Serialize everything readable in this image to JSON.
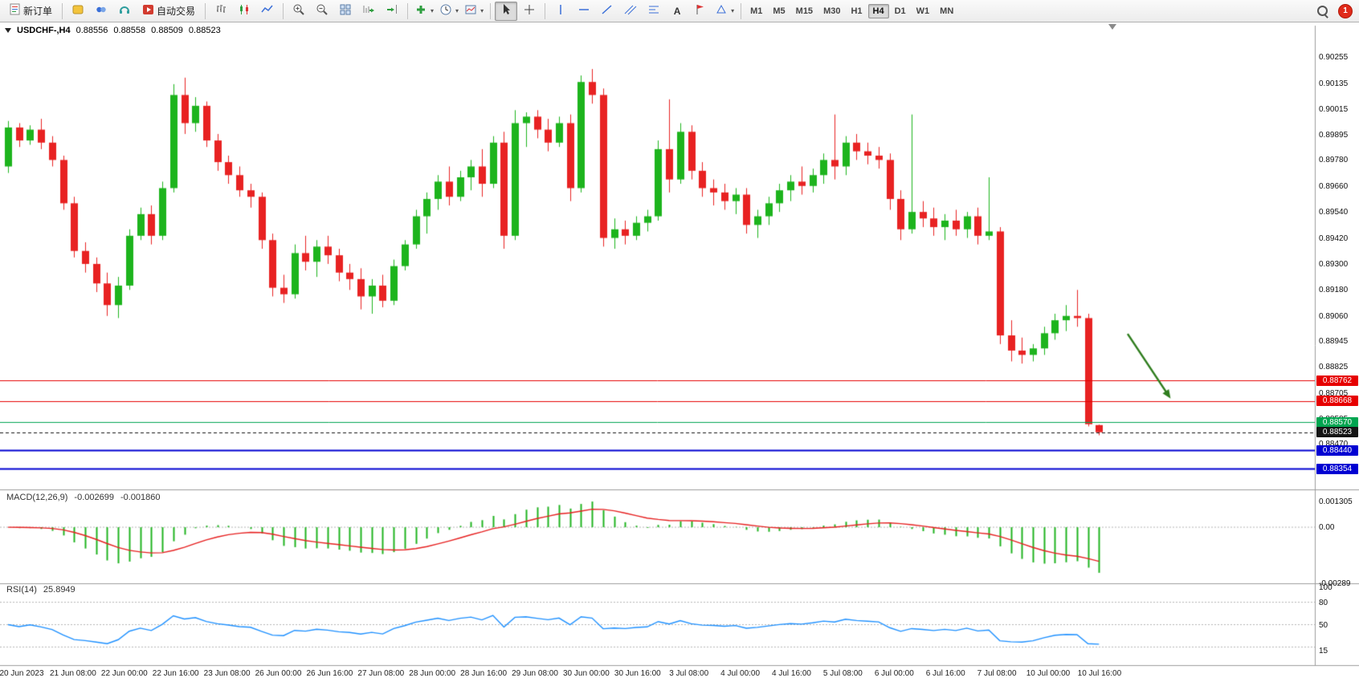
{
  "toolbar": {
    "new_order_label": "新订单",
    "autotrading_label": "自动交易",
    "timeframes": [
      "M1",
      "M5",
      "M15",
      "M30",
      "H1",
      "H4",
      "D1",
      "W1",
      "MN"
    ],
    "active_timeframe": "H4",
    "notification_count": "1"
  },
  "chart_header": {
    "symbol_period": "USDCHF-,H4",
    "open": "0.88556",
    "high": "0.88558",
    "low": "0.88509",
    "close": "0.88523"
  },
  "price_axis": {
    "ticks": [
      "0.90255",
      "0.90135",
      "0.90015",
      "0.89895",
      "0.89780",
      "0.89660",
      "0.89540",
      "0.89420",
      "0.89300",
      "0.89180",
      "0.89060",
      "0.88945",
      "0.88825",
      "0.88705",
      "0.88585",
      "0.88470",
      "0.88350"
    ]
  },
  "levels": [
    {
      "value": "0.88762",
      "price": 0.88762,
      "color": "#e60000",
      "style": "solid",
      "width": 1
    },
    {
      "value": "0.88668",
      "price": 0.88668,
      "color": "#e60000",
      "style": "solid",
      "width": 1
    },
    {
      "value": "0.88570",
      "price": 0.8857,
      "color": "#00a550",
      "style": "solid",
      "width": 1
    },
    {
      "value": "0.88523",
      "price": 0.88523,
      "color": "#151515",
      "style": "dashed",
      "width": 1,
      "current": true
    },
    {
      "value": "0.88440",
      "price": 0.8844,
      "color": "#0000d2",
      "style": "solid",
      "width": 2
    },
    {
      "value": "0.88354",
      "price": 0.88354,
      "color": "#0000d2",
      "style": "solid",
      "width": 2
    }
  ],
  "time_axis": {
    "labels": [
      "20 Jun 2023",
      "21 Jun 08:00",
      "22 Jun 00:00",
      "22 Jun 16:00",
      "23 Jun 08:00",
      "26 Jun 00:00",
      "26 Jun 16:00",
      "27 Jun 08:00",
      "28 Jun 00:00",
      "28 Jun 16:00",
      "29 Jun 08:00",
      "30 Jun 00:00",
      "30 Jun 16:00",
      "3 Jul 08:00",
      "4 Jul 00:00",
      "4 Jul 16:00",
      "5 Jul 08:00",
      "6 Jul 00:00",
      "6 Jul 16:00",
      "7 Jul 08:00",
      "10 Jul 00:00",
      "10 Jul 16:00"
    ]
  },
  "indicators": {
    "macd": {
      "label": "MACD(12,26,9)",
      "value_main": "-0.002699",
      "value_signal": "-0.001860",
      "histogram_color": "#22b422",
      "signal_color": "#e62020",
      "axis": [
        {
          "text": "0.001305",
          "value": 0.001305
        },
        {
          "text": "0.00",
          "value": 0
        },
        {
          "text": "-0.00289",
          "value": -0.00289
        }
      ]
    },
    "rsi": {
      "label": "RSI(14)",
      "value": "25.8949",
      "line_color": "#1E90FF",
      "levels": [
        80,
        50,
        20
      ],
      "axis": [
        {
          "text": "100",
          "value": 100
        },
        {
          "text": "80",
          "value": 80
        },
        {
          "text": "50",
          "value": 50
        },
        {
          "text": "15",
          "value": 15
        }
      ]
    }
  },
  "annotations": {
    "arrow": {
      "color": "#2f7d1e",
      "width": 2.5,
      "from": {
        "bar": 101.6,
        "price": 0.88977
      },
      "to": {
        "bar": 105.5,
        "price": 0.88678
      }
    }
  },
  "chart_data": {
    "type": "candlestick",
    "symbol": "USDCHF-",
    "period": "H4",
    "bull_color": "#1db41d",
    "bear_color": "#e82222",
    "y_range": {
      "max": 0.904,
      "min": 0.8827
    },
    "candles": [
      [
        0.8975,
        0.8996,
        0.8972,
        0.8993
      ],
      [
        0.8993,
        0.8995,
        0.8984,
        0.8987
      ],
      [
        0.8987,
        0.8994,
        0.8985,
        0.8992
      ],
      [
        0.8992,
        0.8997,
        0.8983,
        0.8986
      ],
      [
        0.8986,
        0.8989,
        0.8975,
        0.8978
      ],
      [
        0.8978,
        0.898,
        0.8955,
        0.8958
      ],
      [
        0.8958,
        0.8961,
        0.8933,
        0.8936
      ],
      [
        0.8936,
        0.894,
        0.8926,
        0.893
      ],
      [
        0.893,
        0.8933,
        0.8917,
        0.8921
      ],
      [
        0.8921,
        0.8926,
        0.8906,
        0.8911
      ],
      [
        0.8911,
        0.8924,
        0.8905,
        0.892
      ],
      [
        0.892,
        0.8946,
        0.8918,
        0.8943
      ],
      [
        0.8943,
        0.8956,
        0.8941,
        0.8953
      ],
      [
        0.8953,
        0.8957,
        0.8939,
        0.8943
      ],
      [
        0.8943,
        0.8968,
        0.8941,
        0.8965
      ],
      [
        0.8965,
        0.9013,
        0.8963,
        0.9008
      ],
      [
        0.9008,
        0.9016,
        0.899,
        0.8995
      ],
      [
        0.8995,
        0.9007,
        0.8991,
        0.9003
      ],
      [
        0.9003,
        0.9005,
        0.8984,
        0.8987
      ],
      [
        0.8987,
        0.899,
        0.8973,
        0.8977
      ],
      [
        0.8977,
        0.898,
        0.8967,
        0.8971
      ],
      [
        0.8971,
        0.8975,
        0.8961,
        0.8964
      ],
      [
        0.8964,
        0.8967,
        0.8956,
        0.8961
      ],
      [
        0.8961,
        0.8963,
        0.8937,
        0.8941
      ],
      [
        0.8941,
        0.8944,
        0.8915,
        0.8919
      ],
      [
        0.8919,
        0.8925,
        0.8912,
        0.8916
      ],
      [
        0.8916,
        0.8939,
        0.8914,
        0.8935
      ],
      [
        0.8935,
        0.8943,
        0.8927,
        0.8931
      ],
      [
        0.8931,
        0.8941,
        0.8924,
        0.8938
      ],
      [
        0.8938,
        0.8943,
        0.893,
        0.8934
      ],
      [
        0.8934,
        0.8937,
        0.8922,
        0.8926
      ],
      [
        0.8926,
        0.893,
        0.8918,
        0.8923
      ],
      [
        0.8923,
        0.8928,
        0.8909,
        0.8915
      ],
      [
        0.8915,
        0.8923,
        0.8907,
        0.892
      ],
      [
        0.892,
        0.8925,
        0.891,
        0.8913
      ],
      [
        0.8913,
        0.8932,
        0.8911,
        0.8929
      ],
      [
        0.8929,
        0.8941,
        0.8927,
        0.8939
      ],
      [
        0.8939,
        0.8955,
        0.8937,
        0.8952
      ],
      [
        0.8952,
        0.8963,
        0.8944,
        0.896
      ],
      [
        0.896,
        0.8971,
        0.8955,
        0.8968
      ],
      [
        0.8968,
        0.8975,
        0.8957,
        0.8961
      ],
      [
        0.8961,
        0.8973,
        0.8959,
        0.897
      ],
      [
        0.897,
        0.8978,
        0.8964,
        0.8975
      ],
      [
        0.8975,
        0.8983,
        0.8961,
        0.8967
      ],
      [
        0.8967,
        0.8989,
        0.8965,
        0.8986
      ],
      [
        0.8986,
        0.8991,
        0.8937,
        0.8943
      ],
      [
        0.8943,
        0.9001,
        0.8941,
        0.8995
      ],
      [
        0.8995,
        0.9,
        0.8984,
        0.8998
      ],
      [
        0.8998,
        0.9001,
        0.8988,
        0.8992
      ],
      [
        0.8992,
        0.8997,
        0.8982,
        0.8986
      ],
      [
        0.8986,
        0.8998,
        0.8984,
        0.8995
      ],
      [
        0.8995,
        0.8999,
        0.8959,
        0.8965
      ],
      [
        0.8965,
        0.9017,
        0.8963,
        0.9014
      ],
      [
        0.9014,
        0.902,
        0.9004,
        0.9008
      ],
      [
        0.9008,
        0.9011,
        0.8938,
        0.8942
      ],
      [
        0.8942,
        0.8951,
        0.8937,
        0.8946
      ],
      [
        0.8946,
        0.895,
        0.8939,
        0.8943
      ],
      [
        0.8943,
        0.8952,
        0.8941,
        0.8949
      ],
      [
        0.8949,
        0.8955,
        0.8945,
        0.8952
      ],
      [
        0.8952,
        0.8987,
        0.895,
        0.8983
      ],
      [
        0.8983,
        0.9006,
        0.8963,
        0.8969
      ],
      [
        0.8969,
        0.8995,
        0.8967,
        0.8991
      ],
      [
        0.8991,
        0.8994,
        0.8969,
        0.8973
      ],
      [
        0.8973,
        0.8977,
        0.8961,
        0.8965
      ],
      [
        0.8965,
        0.8969,
        0.8957,
        0.8963
      ],
      [
        0.8963,
        0.8967,
        0.8955,
        0.8959
      ],
      [
        0.8959,
        0.8965,
        0.8953,
        0.8962
      ],
      [
        0.8962,
        0.8965,
        0.8944,
        0.8948
      ],
      [
        0.8948,
        0.8955,
        0.8942,
        0.8952
      ],
      [
        0.8952,
        0.8961,
        0.8948,
        0.8958
      ],
      [
        0.8958,
        0.8967,
        0.8954,
        0.8964
      ],
      [
        0.8964,
        0.8971,
        0.8959,
        0.8968
      ],
      [
        0.8968,
        0.8975,
        0.8962,
        0.8966
      ],
      [
        0.8966,
        0.8974,
        0.8963,
        0.8971
      ],
      [
        0.8971,
        0.8981,
        0.8967,
        0.8978
      ],
      [
        0.8978,
        0.8999,
        0.8969,
        0.8975
      ],
      [
        0.8975,
        0.8989,
        0.8971,
        0.8986
      ],
      [
        0.8986,
        0.899,
        0.8978,
        0.8982
      ],
      [
        0.8982,
        0.8986,
        0.8976,
        0.898
      ],
      [
        0.898,
        0.8984,
        0.8974,
        0.8978
      ],
      [
        0.8978,
        0.8981,
        0.8955,
        0.896
      ],
      [
        0.896,
        0.8964,
        0.8941,
        0.8946
      ],
      [
        0.8946,
        0.8999,
        0.8944,
        0.8954
      ],
      [
        0.8954,
        0.8959,
        0.8947,
        0.8951
      ],
      [
        0.8951,
        0.8956,
        0.8943,
        0.8947
      ],
      [
        0.8947,
        0.8953,
        0.8941,
        0.895
      ],
      [
        0.895,
        0.8955,
        0.8943,
        0.8946
      ],
      [
        0.8946,
        0.8954,
        0.8942,
        0.8952
      ],
      [
        0.8952,
        0.8956,
        0.8939,
        0.8943
      ],
      [
        0.8943,
        0.897,
        0.8941,
        0.8945
      ],
      [
        0.8945,
        0.8947,
        0.8893,
        0.8897
      ],
      [
        0.8897,
        0.8904,
        0.8885,
        0.889
      ],
      [
        0.889,
        0.8896,
        0.8884,
        0.8888
      ],
      [
        0.8888,
        0.8893,
        0.8885,
        0.8891
      ],
      [
        0.8891,
        0.8901,
        0.8888,
        0.8898
      ],
      [
        0.8898,
        0.8907,
        0.8895,
        0.8904
      ],
      [
        0.8904,
        0.8911,
        0.8899,
        0.8906
      ],
      [
        0.8906,
        0.8918,
        0.8901,
        0.8905
      ],
      [
        0.8905,
        0.8907,
        0.8855,
        0.8856
      ],
      [
        0.88556,
        0.88558,
        0.88509,
        0.88523
      ]
    ]
  }
}
